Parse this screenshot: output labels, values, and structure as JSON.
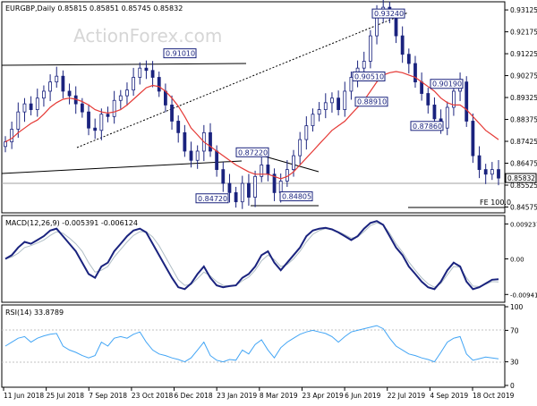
{
  "header": {
    "symbol": "EURGBP",
    "timeframe": "Daily",
    "ohlc": "0.85815 0.85851 0.85745 0.85832"
  },
  "watermark": "ActionForex.com",
  "colors": {
    "candles": "#1a237e",
    "ma": "#e53935",
    "macd": "#1a237e",
    "macd_signal": "#b0bec5",
    "rsi": "#42a5f5",
    "trend_line": "#000000",
    "price_line": "#a0a0a0"
  },
  "chart_data": [
    {
      "type": "line",
      "name": "price",
      "title": "EURGBP,Daily 0.85815 0.85851 0.85745 0.85832",
      "y_axis": {
        "ticks": [
          "0.93125",
          "0.92175",
          "0.91225",
          "0.90275",
          "0.89325",
          "0.88375",
          "0.87425",
          "0.86475",
          "0.85525",
          "0.84575"
        ],
        "current": "0.85832",
        "ylim": [
          0.844,
          0.934
        ]
      },
      "x_axis": {
        "ticks": [
          "11 Jun 2018",
          "25 Jul 2018",
          "7 Sep 2018",
          "23 Oct 2018",
          "6 Dec 2018",
          "23 Jan 2019",
          "8 Mar 2019",
          "23 Apr 2019",
          "6 Jun 2019",
          "22 Jul 2019",
          "4 Sep 2019",
          "18 Oct 2019"
        ]
      },
      "series": [
        {
          "name": "price",
          "values": [
            0.874,
            0.8795,
            0.887,
            0.8905,
            0.888,
            0.893,
            0.896,
            0.9,
            0.9025,
            0.896,
            0.894,
            0.8905,
            0.887,
            0.88,
            0.879,
            0.886,
            0.885,
            0.892,
            0.894,
            0.8965,
            0.902,
            0.906,
            0.905,
            0.902,
            0.896,
            0.89,
            0.883,
            0.878,
            0.87,
            0.866,
            0.87,
            0.878,
            0.87,
            0.862,
            0.856,
            0.852,
            0.848,
            0.856,
            0.85,
            0.859,
            0.864,
            0.86,
            0.852,
            0.857,
            0.862,
            0.868,
            0.875,
            0.881,
            0.886,
            0.888,
            0.891,
            0.893,
            0.888,
            0.896,
            0.902,
            0.906,
            0.909,
            0.92,
            0.93,
            0.9324,
            0.928,
            0.92,
            0.912,
            0.908,
            0.9,
            0.895,
            0.89,
            0.884,
            0.88,
            0.889,
            0.896,
            0.9,
            0.883,
            0.868,
            0.862,
            0.86,
            0.862,
            0.8583
          ]
        },
        {
          "name": "ma",
          "values": [
            0.874,
            0.8755,
            0.878,
            0.88,
            0.882,
            0.8835,
            0.886,
            0.889,
            0.891,
            0.8925,
            0.893,
            0.8925,
            0.8915,
            0.89,
            0.888,
            0.887,
            0.8865,
            0.887,
            0.888,
            0.89,
            0.8925,
            0.895,
            0.8975,
            0.8985,
            0.898,
            0.896,
            0.893,
            0.8895,
            0.885,
            0.88,
            0.877,
            0.874,
            0.872,
            0.87,
            0.868,
            0.866,
            0.864,
            0.8625,
            0.861,
            0.86,
            0.86,
            0.86,
            0.859,
            0.858,
            0.859,
            0.861,
            0.864,
            0.867,
            0.87,
            0.873,
            0.876,
            0.879,
            0.881,
            0.883,
            0.886,
            0.889,
            0.892,
            0.896,
            0.9,
            0.903,
            0.904,
            0.9045,
            0.904,
            0.903,
            0.902,
            0.9,
            0.898,
            0.896,
            0.893,
            0.891,
            0.89,
            0.89,
            0.888,
            0.885,
            0.882,
            0.879,
            0.877,
            0.875
          ]
        }
      ],
      "annotations": [
        {
          "label": "0.91010",
          "value": 0.9101
        },
        {
          "label": "0.87220",
          "value": 0.8722
        },
        {
          "label": "0.84720",
          "value": 0.8472
        },
        {
          "label": "0.84805",
          "value": 0.84805
        },
        {
          "label": "0.90510",
          "value": 0.9051
        },
        {
          "label": "0.93240",
          "value": 0.9324
        },
        {
          "label": "0.88910",
          "value": 0.8891
        },
        {
          "label": "0.90190",
          "value": 0.9019
        },
        {
          "label": "0.87860",
          "value": 0.8786
        },
        {
          "label": "FE 100.0",
          "value": 0.8455
        }
      ]
    },
    {
      "type": "line",
      "name": "macd",
      "title": "MACD(12,26,9) -0.005391 -0.006124",
      "y_axis": {
        "ticks": [
          "0.009237",
          "0.00",
          "-0.009413"
        ],
        "ylim": [
          -0.011,
          0.011
        ]
      },
      "series": [
        {
          "name": "MACD",
          "values": [
            0.0,
            0.001,
            0.003,
            0.0045,
            0.004,
            0.005,
            0.006,
            0.0075,
            0.008,
            0.006,
            0.004,
            0.002,
            -0.001,
            -0.004,
            -0.005,
            -0.002,
            -0.001,
            0.002,
            0.004,
            0.006,
            0.0075,
            0.008,
            0.007,
            0.004,
            0.001,
            -0.002,
            -0.005,
            -0.0075,
            -0.008,
            -0.0065,
            -0.004,
            -0.002,
            -0.005,
            -0.007,
            -0.0075,
            -0.0072,
            -0.007,
            -0.005,
            -0.004,
            -0.002,
            0.001,
            0.002,
            -0.001,
            -0.003,
            -0.001,
            0.001,
            0.003,
            0.006,
            0.0075,
            0.008,
            0.0082,
            0.0078,
            0.007,
            0.006,
            0.005,
            0.006,
            0.008,
            0.0095,
            0.01,
            0.009,
            0.006,
            0.003,
            0.001,
            -0.002,
            -0.004,
            -0.006,
            -0.0075,
            -0.008,
            -0.006,
            -0.003,
            -0.001,
            -0.002,
            -0.006,
            -0.008,
            -0.0075,
            -0.0065,
            -0.0055,
            -0.0054
          ]
        },
        {
          "name": "Signal",
          "values": [
            0.0,
            0.0005,
            0.0015,
            0.003,
            0.0035,
            0.0042,
            0.005,
            0.0062,
            0.0072,
            0.0068,
            0.0055,
            0.004,
            0.002,
            -0.001,
            -0.0035,
            -0.003,
            -0.002,
            0.0005,
            0.0025,
            0.0045,
            0.0062,
            0.0072,
            0.0072,
            0.0058,
            0.0035,
            0.0005,
            -0.0025,
            -0.0055,
            -0.007,
            -0.0068,
            -0.0052,
            -0.0035,
            -0.0045,
            -0.006,
            -0.007,
            -0.0072,
            -0.007,
            -0.0058,
            -0.0048,
            -0.003,
            -0.0005,
            0.001,
            -0.0002,
            -0.002,
            -0.0015,
            0.0,
            0.002,
            0.0045,
            0.0065,
            0.0075,
            0.008,
            0.0078,
            0.0072,
            0.0064,
            0.0055,
            0.0058,
            0.0072,
            0.0088,
            0.0095,
            0.009,
            0.0068,
            0.004,
            0.0018,
            -0.0008,
            -0.003,
            -0.005,
            -0.0066,
            -0.0075,
            -0.0065,
            -0.0042,
            -0.002,
            -0.0022,
            -0.005,
            -0.0072,
            -0.0073,
            -0.0067,
            -0.006,
            -0.0061
          ]
        }
      ]
    },
    {
      "type": "line",
      "name": "rsi",
      "title": "RSI(14) 33.8789",
      "y_axis": {
        "ticks": [
          "100",
          "70",
          "30",
          "0"
        ],
        "ylim": [
          0,
          100
        ]
      },
      "series": [
        {
          "name": "RSI",
          "values": [
            50,
            55,
            60,
            62,
            55,
            60,
            63,
            65,
            66,
            50,
            45,
            42,
            38,
            35,
            38,
            55,
            50,
            60,
            62,
            60,
            65,
            68,
            55,
            45,
            40,
            38,
            35,
            33,
            30,
            35,
            45,
            55,
            38,
            32,
            30,
            33,
            32,
            45,
            40,
            52,
            58,
            45,
            35,
            48,
            55,
            60,
            65,
            68,
            70,
            68,
            66,
            62,
            55,
            62,
            68,
            70,
            72,
            74,
            76,
            72,
            60,
            50,
            45,
            40,
            38,
            35,
            33,
            30,
            42,
            55,
            60,
            62,
            40,
            32,
            34,
            36,
            35,
            33.88
          ]
        }
      ]
    }
  ]
}
